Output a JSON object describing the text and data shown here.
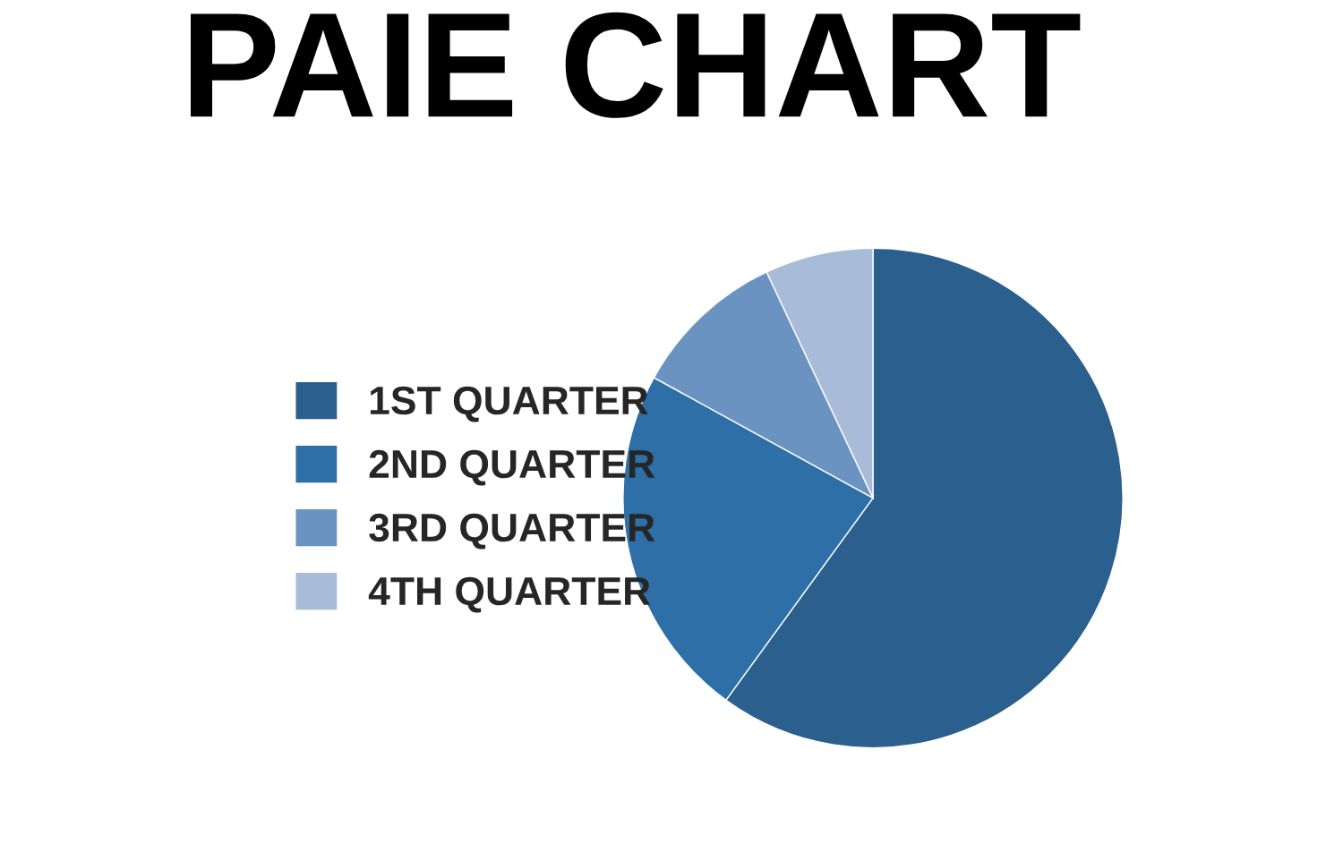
{
  "chart_data": {
    "type": "pie",
    "title": "PAIE CHART",
    "categories": [
      "1ST QUARTER",
      "2ND QUARTER",
      "3RD QUARTER",
      "4TH QUARTER"
    ],
    "values": [
      60,
      23,
      10,
      7
    ],
    "colors": [
      "#2a5f8e",
      "#2e6fa8",
      "#6b93c2",
      "#a8bbd9"
    ],
    "legend": "left"
  }
}
